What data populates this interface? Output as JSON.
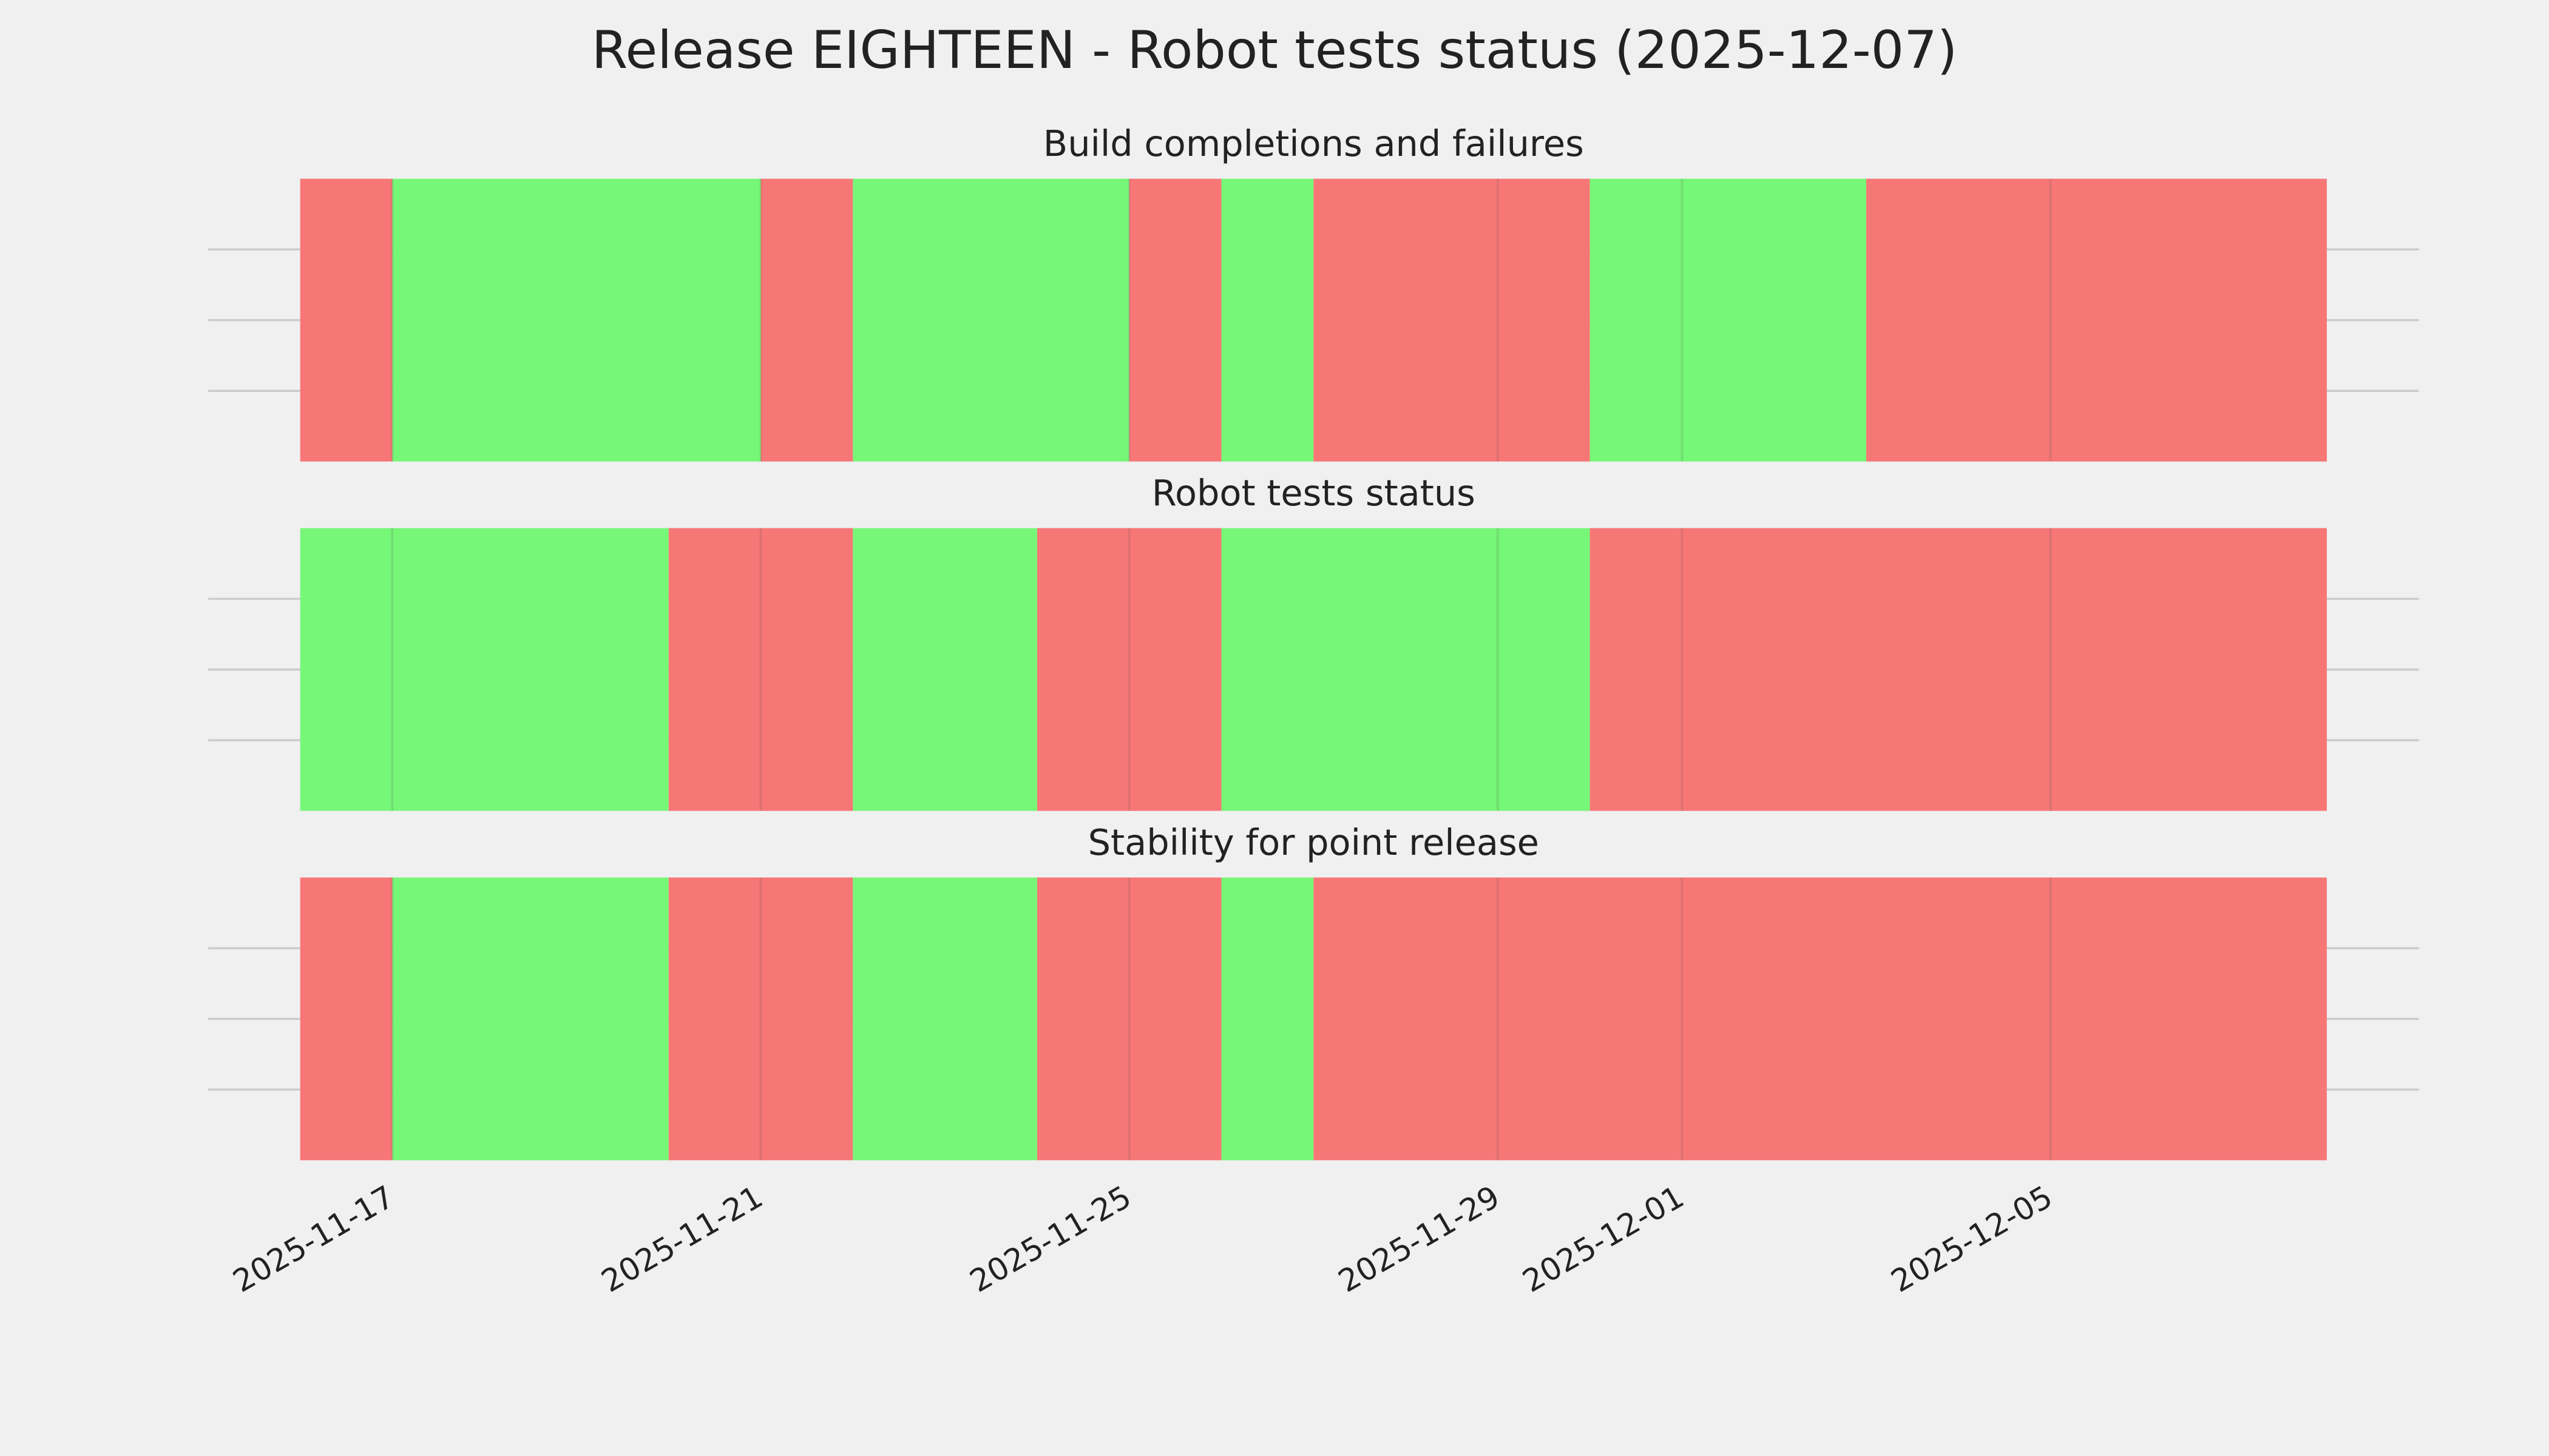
{
  "title": "Release EIGHTEEN - Robot tests status (2025-12-07)",
  "chart_data": [
    {
      "type": "timeline",
      "title": "Build completions and failures",
      "xlim": [
        "2025-11-15",
        "2025-12-09"
      ],
      "xticks": [
        "2025-11-17",
        "2025-11-21",
        "2025-11-25",
        "2025-11-29",
        "2025-12-01",
        "2025-12-05"
      ],
      "ylim": [
        0,
        1
      ],
      "yticks": [
        0.25,
        0.5,
        0.75
      ],
      "grid": true,
      "segments": [
        {
          "start": "2025-11-16",
          "end": "2025-11-17",
          "color": "#f77777"
        },
        {
          "start": "2025-11-17",
          "end": "2025-11-21",
          "color": "#77f777"
        },
        {
          "start": "2025-11-21",
          "end": "2025-11-22",
          "color": "#f77777"
        },
        {
          "start": "2025-11-22",
          "end": "2025-11-25",
          "color": "#77f777"
        },
        {
          "start": "2025-11-25",
          "end": "2025-11-26",
          "color": "#f77777"
        },
        {
          "start": "2025-11-26",
          "end": "2025-11-27",
          "color": "#77f777"
        },
        {
          "start": "2025-11-27",
          "end": "2025-11-30",
          "color": "#f77777"
        },
        {
          "start": "2025-11-30",
          "end": "2025-12-03",
          "color": "#77f777"
        },
        {
          "start": "2025-12-03",
          "end": "2025-12-08",
          "color": "#f77777"
        }
      ]
    },
    {
      "type": "timeline",
      "title": "Robot tests status",
      "xlim": [
        "2025-11-15",
        "2025-12-09"
      ],
      "xticks": [
        "2025-11-17",
        "2025-11-21",
        "2025-11-25",
        "2025-11-29",
        "2025-12-01",
        "2025-12-05"
      ],
      "ylim": [
        0,
        1
      ],
      "yticks": [
        0.25,
        0.5,
        0.75
      ],
      "grid": true,
      "segments": [
        {
          "start": "2025-11-16",
          "end": "2025-11-20",
          "color": "#77f777"
        },
        {
          "start": "2025-11-20",
          "end": "2025-11-22",
          "color": "#f77777"
        },
        {
          "start": "2025-11-22",
          "end": "2025-11-24",
          "color": "#77f777"
        },
        {
          "start": "2025-11-24",
          "end": "2025-11-26",
          "color": "#f77777"
        },
        {
          "start": "2025-11-26",
          "end": "2025-11-30",
          "color": "#77f777"
        },
        {
          "start": "2025-11-30",
          "end": "2025-12-08",
          "color": "#f77777"
        }
      ]
    },
    {
      "type": "timeline",
      "title": "Stability for point release",
      "xlim": [
        "2025-11-15",
        "2025-12-09"
      ],
      "xticks": [
        "2025-11-17",
        "2025-11-21",
        "2025-11-25",
        "2025-11-29",
        "2025-12-01",
        "2025-12-05"
      ],
      "ylim": [
        0,
        1
      ],
      "yticks": [
        0.25,
        0.5,
        0.75
      ],
      "grid": true,
      "segments": [
        {
          "start": "2025-11-16",
          "end": "2025-11-17",
          "color": "#f77777"
        },
        {
          "start": "2025-11-17",
          "end": "2025-11-20",
          "color": "#77f777"
        },
        {
          "start": "2025-11-20",
          "end": "2025-11-22",
          "color": "#f77777"
        },
        {
          "start": "2025-11-22",
          "end": "2025-11-24",
          "color": "#77f777"
        },
        {
          "start": "2025-11-24",
          "end": "2025-11-26",
          "color": "#f77777"
        },
        {
          "start": "2025-11-26",
          "end": "2025-11-27",
          "color": "#77f777"
        },
        {
          "start": "2025-11-27",
          "end": "2025-12-08",
          "color": "#f77777"
        }
      ]
    }
  ]
}
